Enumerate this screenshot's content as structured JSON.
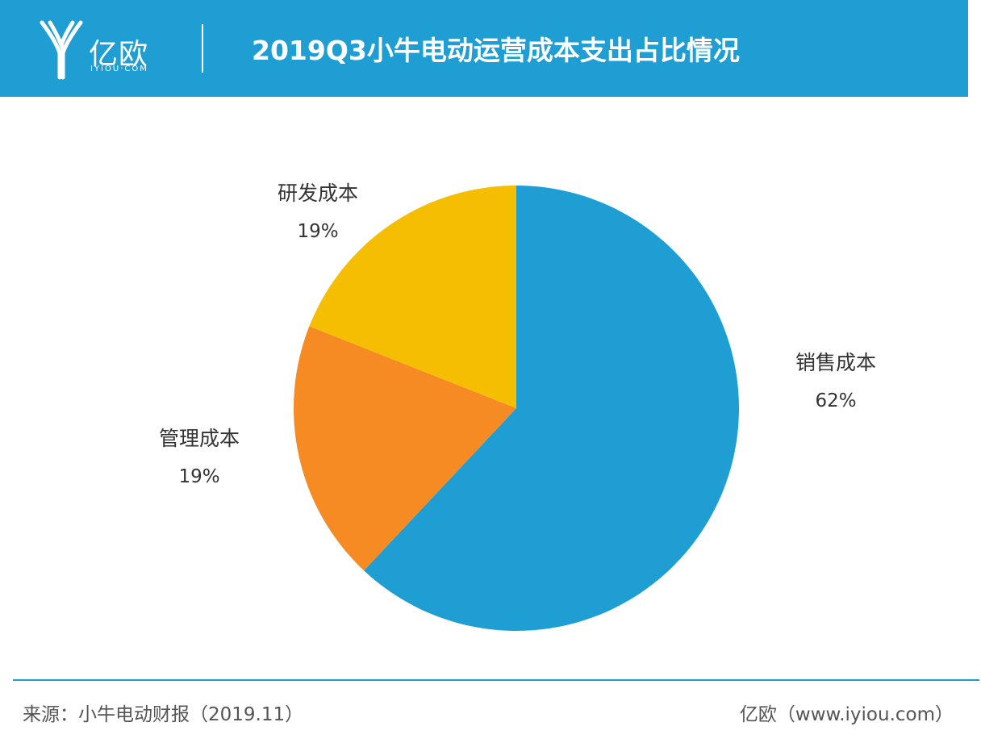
{
  "header": {
    "logo_text": "亿欧",
    "logo_subtext": "IYIOU·COM",
    "title": "2019Q3小牛电动运营成本支出占比情况"
  },
  "chart_data": {
    "type": "pie",
    "title": "2019Q3小牛电动运营成本支出占比情况",
    "slices": [
      {
        "label": "销售成本",
        "value": 62,
        "value_label": "62%",
        "color": "#1f9ed4"
      },
      {
        "label": "管理成本",
        "value": 19,
        "value_label": "19%",
        "color": "#f68b24"
      },
      {
        "label": "研发成本",
        "value": 19,
        "value_label": "19%",
        "color": "#f5be00"
      }
    ]
  },
  "footer": {
    "source": "来源：小牛电动财报（2019.11）",
    "site": "亿欧（www.iyiou.com）"
  },
  "colors": {
    "brand": "#1f9ed4",
    "text": "#333333"
  }
}
